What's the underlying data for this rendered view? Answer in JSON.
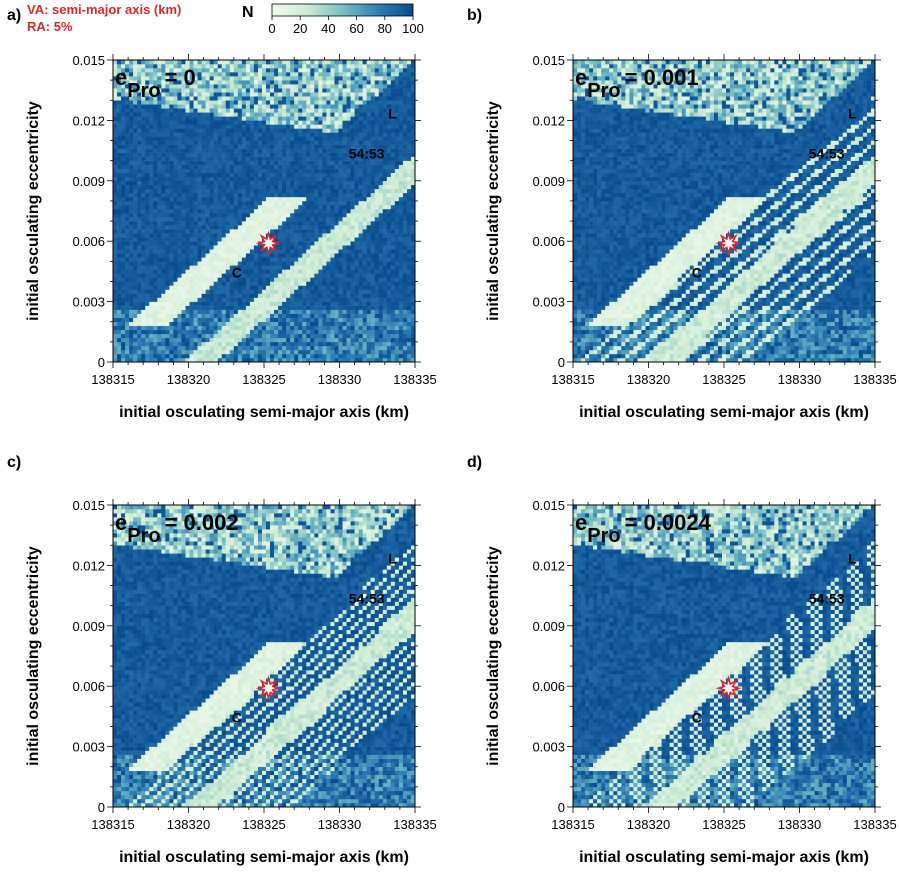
{
  "header": {
    "va_label": "VA: semi-major axis (km)",
    "ra_label": "RA: 5%",
    "colorbar_title": "N",
    "colorbar_ticks": [
      "0",
      "20",
      "40",
      "60",
      "80",
      "100"
    ]
  },
  "colors": {
    "low": "#eef8ea",
    "mid": "#a6d9c0",
    "high": "#084b8f",
    "star": "#e0242a"
  },
  "axes": {
    "xlabel": "initial osculating semi-major axis (km)",
    "ylabel": "initial osculating eccentricity",
    "xticks": [
      "138315",
      "138320",
      "138325",
      "138330",
      "138335"
    ],
    "yticks": [
      "0",
      "0.003",
      "0.006",
      "0.009",
      "0.012",
      "0.015"
    ]
  },
  "chart_data": [
    {
      "type": "heatmap",
      "panel": "a)",
      "param_base": "e",
      "param_sub": "Pro",
      "param_value": "= 0",
      "xlim": [
        138315,
        138335
      ],
      "ylim": [
        0,
        0.015
      ],
      "zlim": [
        0,
        100
      ],
      "annotations": {
        "res": "54:53",
        "L": "L",
        "C": "C"
      },
      "star": {
        "x": 138325.3,
        "y": 0.0059
      }
    },
    {
      "type": "heatmap",
      "panel": "b)",
      "param_base": "e",
      "param_sub": "Pro",
      "param_value": "= 0.001",
      "xlim": [
        138315,
        138335
      ],
      "ylim": [
        0,
        0.015
      ],
      "zlim": [
        0,
        100
      ],
      "annotations": {
        "res": "54:53",
        "L": "L",
        "C": "C"
      },
      "star": {
        "x": 138325.3,
        "y": 0.0059
      }
    },
    {
      "type": "heatmap",
      "panel": "c)",
      "param_base": "e",
      "param_sub": "Pro",
      "param_value": "= 0.002",
      "xlim": [
        138315,
        138335
      ],
      "ylim": [
        0,
        0.015
      ],
      "zlim": [
        0,
        100
      ],
      "annotations": {
        "res": "54:53",
        "L": "L",
        "C": "C"
      },
      "star": {
        "x": 138325.3,
        "y": 0.0059
      }
    },
    {
      "type": "heatmap",
      "panel": "d)",
      "param_base": "e",
      "param_sub": "Pro",
      "param_value": "= 0.0024",
      "xlim": [
        138315,
        138335
      ],
      "ylim": [
        0,
        0.015
      ],
      "zlim": [
        0,
        100
      ],
      "annotations": {
        "res": "54:53",
        "L": "L",
        "C": "C"
      },
      "star": {
        "x": 138325.3,
        "y": 0.0059
      }
    }
  ]
}
